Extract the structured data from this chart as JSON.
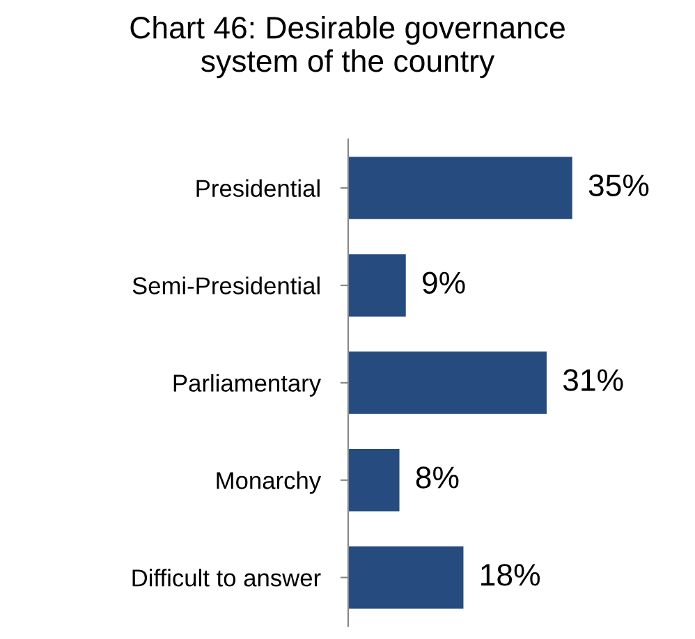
{
  "chart_data": {
    "type": "bar",
    "orientation": "horizontal",
    "title": "Chart 46: Desirable governance\nsystem of the country",
    "categories": [
      "Presidential",
      "Semi-Presidential",
      "Parliamentary",
      "Monarchy",
      "Difficult to answer"
    ],
    "values": [
      35,
      9,
      31,
      8,
      18
    ],
    "value_labels": [
      "35%",
      "9%",
      "31%",
      "8%",
      "18%"
    ],
    "color": "#254b7f",
    "grid": false,
    "legend": false
  }
}
